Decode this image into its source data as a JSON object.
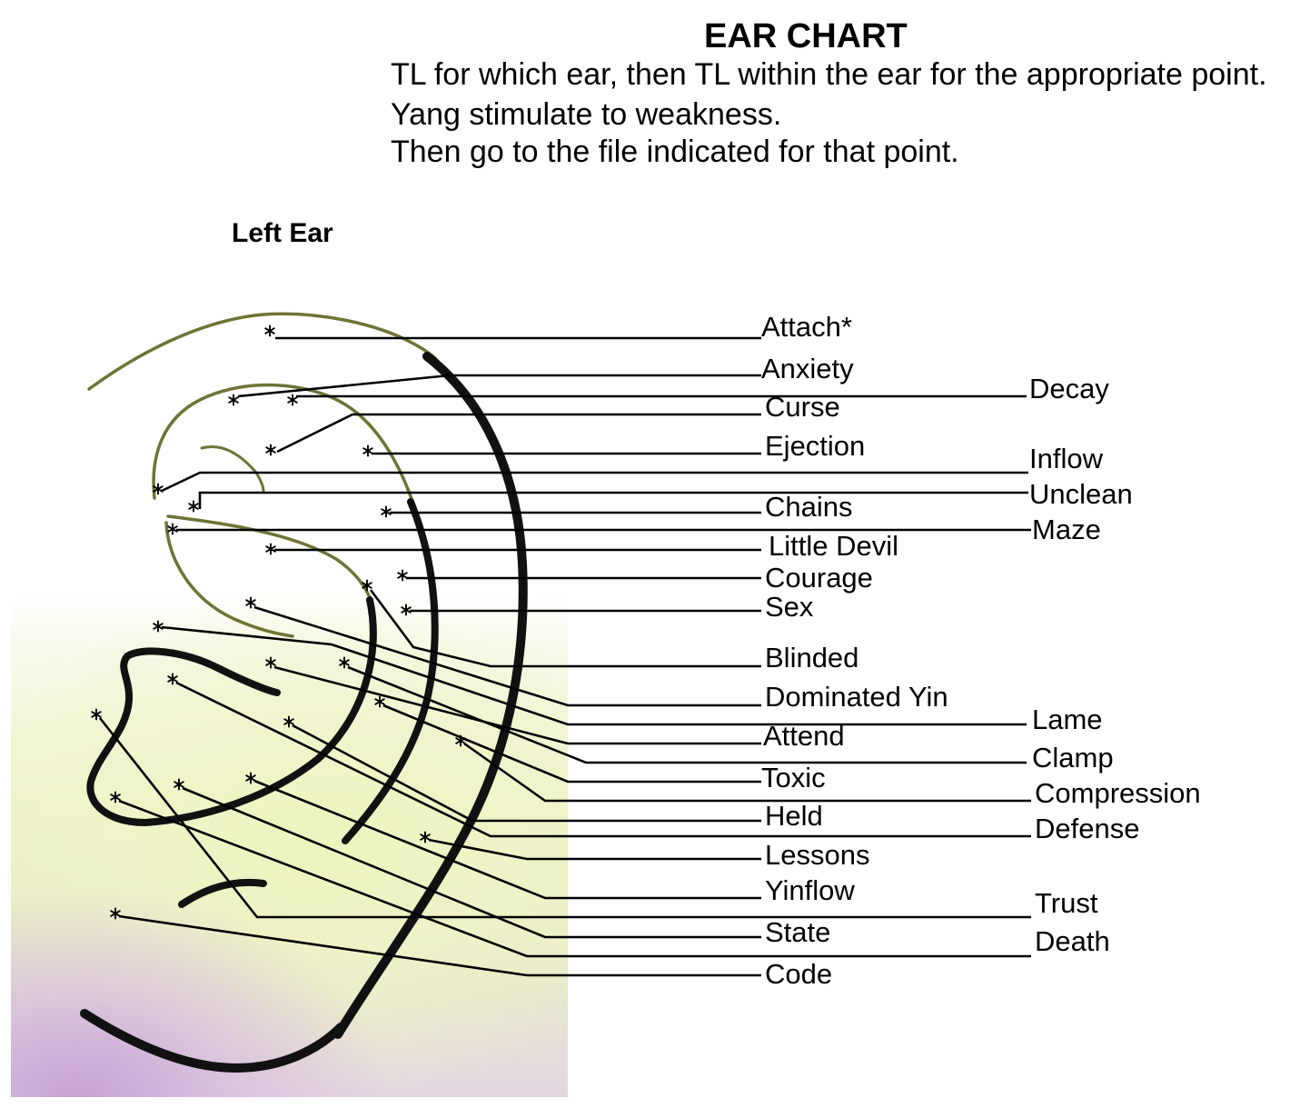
{
  "header": {
    "title": "EAR CHART",
    "instructions": [
      "TL for which ear, then TL within the ear for the appropriate point.",
      "Yang stimulate to weakness.",
      "Then go to the file indicated for that point."
    ]
  },
  "ear_label": "Left Ear",
  "points": {
    "attach": "Attach*",
    "anxiety": "Anxiety",
    "decay": "Decay",
    "curse": "Curse",
    "ejection": "Ejection",
    "inflow": "Inflow",
    "unclean": "Unclean",
    "chains": "Chains",
    "maze": "Maze",
    "little_devil": "Little Devil",
    "courage": "Courage",
    "sex": "Sex",
    "blinded": "Blinded",
    "dominated_yin": "Dominated Yin",
    "lame": "Lame",
    "attend": "Attend",
    "clamp": "Clamp",
    "toxic": "Toxic",
    "compression": "Compression",
    "held": "Held",
    "defense": "Defense",
    "lessons": "Lessons",
    "yinflow": "Yinflow",
    "trust": "Trust",
    "state": "State",
    "death": "Death",
    "code": "Code"
  },
  "colors": {
    "ear_outline": "#111111",
    "ear_cartilage": "#6f7335",
    "leader_line": "#000000"
  }
}
